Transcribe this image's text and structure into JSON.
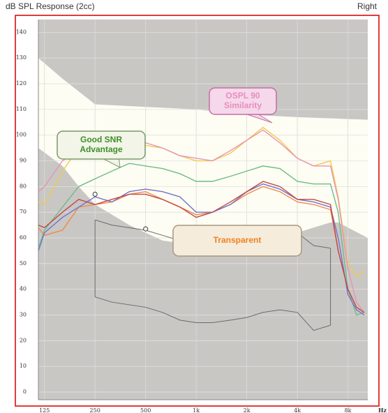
{
  "chart_data": {
    "type": "line",
    "title": "dB SPL Response (2cc)",
    "side": "Right",
    "x_unit": "Hz",
    "log_x": true,
    "grid": true,
    "xlim": [
      115,
      10500
    ],
    "ylim": [
      -3,
      145
    ],
    "xticks": [
      125,
      250,
      500,
      {
        "value": 1000,
        "label": "1k"
      },
      {
        "value": 2000,
        "label": "2k"
      },
      {
        "value": 4000,
        "label": "4k"
      },
      {
        "value": 8000,
        "label": "8k"
      }
    ],
    "yticks": [
      0,
      10,
      20,
      30,
      40,
      50,
      60,
      70,
      80,
      90,
      100,
      110,
      120,
      130,
      140
    ],
    "shaded_regions": [
      {
        "side": "above",
        "color": "#c8c7c4",
        "x": [
          115,
          160,
          250,
          500,
          1000,
          2000,
          4000,
          10500
        ],
        "values": [
          130,
          122,
          112,
          111,
          110,
          108,
          107,
          106
        ]
      },
      {
        "side": "below",
        "color": "#c8c7c4",
        "x": [
          115,
          160,
          200,
          250,
          400,
          500,
          630,
          800,
          1000,
          2000,
          3150,
          4000,
          5000,
          6300,
          7000,
          10500
        ],
        "values": [
          95,
          88,
          80,
          73,
          65,
          62,
          59,
          58,
          57,
          57,
          60,
          62,
          64,
          66,
          66,
          60
        ]
      }
    ],
    "x": [
      115,
      125,
      160,
      200,
      250,
      315,
      400,
      500,
      630,
      800,
      1000,
      1250,
      1600,
      2000,
      2500,
      3150,
      4000,
      5000,
      6300,
      7000,
      8000,
      9000,
      10000
    ],
    "series": [
      {
        "color": "#f2c94c",
        "values": [
          74,
          73,
          86,
          95,
          96,
          96,
          96,
          96,
          95,
          92,
          90,
          90,
          93,
          98,
          103,
          98,
          91,
          88,
          90,
          76,
          50,
          45,
          47
        ]
      },
      {
        "color": "#e892b8",
        "values": [
          78,
          80,
          90,
          94,
          95,
          96,
          97,
          97,
          95,
          92,
          91,
          90,
          94,
          98,
          102,
          97,
          91,
          88,
          88,
          75,
          48,
          35,
          31
        ]
      },
      {
        "color": "#6cbd86",
        "values": [
          56,
          63,
          72,
          80,
          83,
          86,
          89,
          88,
          87,
          85,
          82,
          82,
          84,
          86,
          88,
          87,
          82,
          81,
          81,
          70,
          40,
          30,
          31
        ]
      },
      {
        "color": "#f08a4b",
        "values": [
          64,
          61,
          63,
          72,
          73,
          74,
          77,
          78,
          75,
          72,
          69,
          70,
          73,
          77,
          80,
          78,
          74,
          73,
          71,
          55,
          40,
          33,
          31
        ]
      },
      {
        "color": "#7073d0",
        "values": [
          55,
          62,
          68,
          72,
          76,
          74,
          78,
          79,
          78,
          76,
          70,
          70,
          73,
          78,
          81,
          79,
          75,
          74,
          72,
          60,
          38,
          32,
          30
        ]
      },
      {
        "color": "#c24848",
        "values": [
          65,
          64,
          70,
          75,
          73,
          75,
          77,
          77,
          75,
          72,
          68,
          70,
          74,
          78,
          82,
          80,
          75,
          75,
          73,
          55,
          40,
          33,
          31
        ]
      }
    ],
    "speech_range": {
      "color": "#6a6a6a",
      "x": [
        250,
        315,
        500,
        630,
        800,
        1000,
        1250,
        1600,
        2000,
        2500,
        3150,
        4000,
        5000,
        6300
      ],
      "upper": [
        67,
        65,
        63,
        61,
        59,
        57,
        57,
        57,
        58,
        59,
        61,
        62,
        57,
        56
      ],
      "lower": [
        37,
        35,
        33,
        31,
        28,
        27,
        27,
        28,
        29,
        31,
        32,
        31,
        24,
        26
      ]
    },
    "markers": {
      "color": "#555",
      "x": [
        250,
        500,
        1000,
        4000
      ],
      "values": [
        77,
        63.5,
        57.5,
        62
      ]
    },
    "annotations": [
      {
        "lines": [
          "OSPL 90",
          "Similarity"
        ],
        "color": "#e98cc0",
        "border": "#c56fa3",
        "bg": "#f5d8ea"
      },
      {
        "lines": [
          "Good SNR",
          "Advantage"
        ],
        "color": "#3f8f2a",
        "border": "#7a9a6a",
        "bg": "#f2f5e8"
      },
      {
        "lines": [
          "Transparent"
        ],
        "color": "#f0801e",
        "border": "#a89880",
        "bg": "#f5ecdc"
      }
    ]
  }
}
